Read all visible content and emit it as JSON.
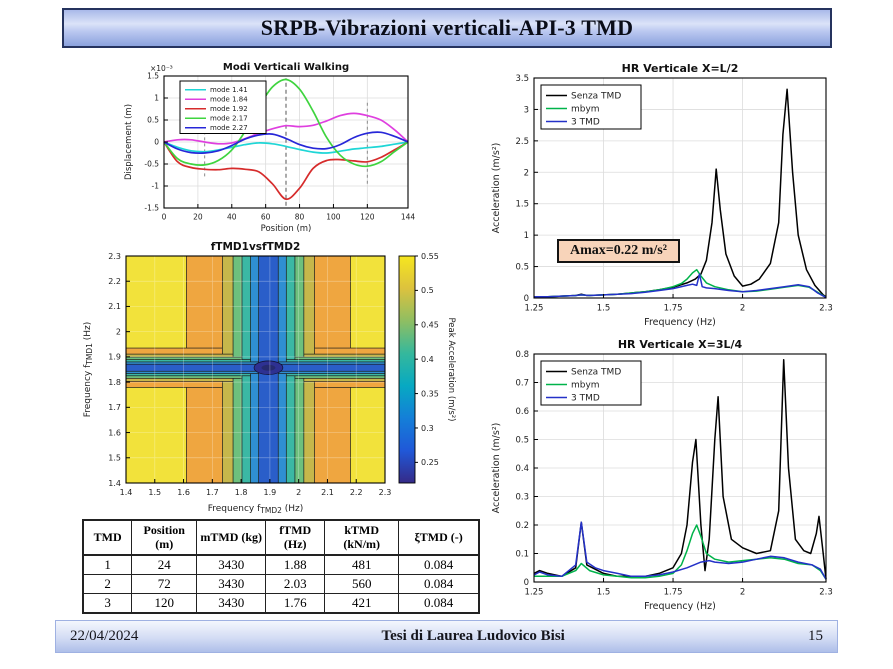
{
  "slide": {
    "title": "SRPB-Vibrazioni verticali-API-3 TMD"
  },
  "footer": {
    "date": "22/04/2024",
    "center": "Tesi di Laurea Ludovico Bisi",
    "page": "15"
  },
  "annotation": {
    "amax": "Amax=0.22 m/s²"
  },
  "table": {
    "headers": [
      "TMD",
      "Position\n(m)",
      "mTMD (kg)",
      "fTMD\n(Hz)",
      "kTMD\n(kN/m)",
      "ξTMD (-)"
    ],
    "rows": [
      [
        "1",
        "24",
        "3430",
        "1.88",
        "481",
        "0.084"
      ],
      [
        "2",
        "72",
        "3430",
        "2.03",
        "560",
        "0.084"
      ],
      [
        "3",
        "120",
        "3430",
        "1.76",
        "421",
        "0.084"
      ]
    ]
  },
  "chart_data": [
    {
      "id": "chart-modes",
      "type": "line",
      "title": "Modi Verticali Walking",
      "xlabel": "Position (m)",
      "ylabel": "Displacement (m)",
      "exp_label": "×10⁻³",
      "xlim": [
        0,
        144
      ],
      "ylim": [
        -1.5,
        1.5
      ],
      "xticks": [
        0,
        20,
        40,
        60,
        80,
        100,
        120,
        144
      ],
      "yticks": [
        -1.5,
        -1,
        -0.5,
        0,
        0.5,
        1,
        1.5
      ],
      "grid": true,
      "legend": true,
      "smooth": true,
      "vlines": [
        {
          "x": 24,
          "y1": -0.78,
          "y2": 0.32,
          "color": "#8a8a8a",
          "dash": "3,3"
        },
        {
          "x": 72,
          "y1": -1.45,
          "y2": 1.45,
          "color": "#555555",
          "dash": "4,3"
        },
        {
          "x": 120,
          "y1": -0.95,
          "y2": 0.95,
          "color": "#8a8a8a",
          "dash": "3,3"
        }
      ],
      "series": [
        {
          "name": "mode 1.41",
          "color": "#1ed6d6",
          "x": [
            0,
            8,
            16,
            24,
            32,
            40,
            48,
            56,
            64,
            72,
            80,
            88,
            96,
            104,
            112,
            120,
            128,
            136,
            144
          ],
          "y": [
            0,
            -0.12,
            -0.2,
            -0.22,
            -0.18,
            -0.12,
            -0.06,
            -0.02,
            -0.04,
            -0.1,
            -0.17,
            -0.23,
            -0.25,
            -0.21,
            -0.16,
            -0.13,
            -0.1,
            -0.05,
            0
          ]
        },
        {
          "name": "mode 1.84",
          "color": "#df3fdf",
          "x": [
            0,
            8,
            16,
            24,
            32,
            40,
            48,
            56,
            64,
            72,
            80,
            88,
            96,
            104,
            112,
            120,
            128,
            136,
            144
          ],
          "y": [
            0,
            0.05,
            0.05,
            0,
            -0.04,
            -0.02,
            0.08,
            0.2,
            0.3,
            0.37,
            0.35,
            0.38,
            0.48,
            0.6,
            0.65,
            0.6,
            0.5,
            0.28,
            0
          ]
        },
        {
          "name": "mode 1.92",
          "color": "#d62b2b",
          "x": [
            0,
            8,
            16,
            24,
            32,
            40,
            48,
            56,
            64,
            72,
            80,
            88,
            96,
            104,
            112,
            120,
            128,
            136,
            144
          ],
          "y": [
            0,
            -0.45,
            -0.58,
            -0.62,
            -0.63,
            -0.6,
            -0.62,
            -0.68,
            -0.95,
            -1.3,
            -1.05,
            -0.6,
            -0.42,
            -0.4,
            -0.43,
            -0.45,
            -0.35,
            -0.18,
            0
          ]
        },
        {
          "name": "mode 2.17",
          "color": "#3fd43f",
          "x": [
            0,
            8,
            16,
            24,
            32,
            40,
            48,
            56,
            64,
            72,
            80,
            88,
            96,
            104,
            112,
            120,
            128,
            136,
            144
          ],
          "y": [
            0,
            -0.38,
            -0.5,
            -0.52,
            -0.42,
            -0.18,
            0.25,
            0.8,
            1.25,
            1.42,
            1.2,
            0.7,
            0.1,
            -0.3,
            -0.5,
            -0.55,
            -0.45,
            -0.22,
            0
          ]
        },
        {
          "name": "mode 2.27",
          "color": "#2727d8",
          "x": [
            0,
            8,
            16,
            24,
            32,
            40,
            48,
            56,
            64,
            72,
            80,
            88,
            96,
            104,
            112,
            120,
            128,
            136,
            144
          ],
          "y": [
            0,
            -0.16,
            -0.24,
            -0.25,
            -0.2,
            -0.08,
            0.07,
            0.16,
            0.18,
            0.08,
            -0.06,
            -0.14,
            -0.15,
            -0.06,
            0.1,
            0.2,
            0.22,
            0.13,
            0
          ]
        }
      ]
    },
    {
      "id": "chart-contour",
      "type": "heatmap",
      "title": "fTMD1vsfTMD2",
      "xlabel_parts": [
        "Frequency f",
        "TMD2",
        " (Hz)"
      ],
      "ylabel_parts": [
        "Frequency f",
        "TMD1",
        " (Hz)"
      ],
      "xlim": [
        1.4,
        2.3
      ],
      "ylim": [
        1.4,
        2.3
      ],
      "xticks": [
        1.4,
        1.5,
        1.6,
        1.7,
        1.8,
        1.9,
        2,
        2.1,
        2.2,
        2.3
      ],
      "yticks": [
        1.4,
        1.5,
        1.6,
        1.7,
        1.8,
        1.9,
        2,
        2.1,
        2.2,
        2.3
      ],
      "bg_color": "#f2e23b",
      "center": {
        "x": 1.895,
        "y": 1.857
      },
      "bands": [
        {
          "color": "#efa640",
          "hx": 0.285,
          "hy": 0.078
        },
        {
          "color": "#c6b74b",
          "hx": 0.16,
          "hy": 0.054
        },
        {
          "color": "#6dc07d",
          "hx": 0.123,
          "hy": 0.042
        },
        {
          "color": "#3bb8a4",
          "hx": 0.092,
          "hy": 0.032
        },
        {
          "color": "#2f8fd2",
          "hx": 0.062,
          "hy": 0.023
        },
        {
          "color": "#2a5ec9",
          "hx": 0.034,
          "hy": 0.014
        }
      ],
      "blob": {
        "rx": 0.05,
        "ry": 0.027,
        "color": "#2e3192",
        "inner_rx": 0.024,
        "inner_ry": 0.012,
        "inner_color": "#262a6e"
      },
      "colorbar": {
        "min": 0.22,
        "max": 0.55,
        "ticks": [
          0.25,
          0.3,
          0.35,
          0.4,
          0.45,
          0.5,
          0.55
        ],
        "label": "Peak Acceleration (m/s²)",
        "stops": [
          "#352a87",
          "#2058d8",
          "#147fd8",
          "#07a9c2",
          "#35b89c",
          "#8fbe62",
          "#dcc23e",
          "#f6e61f"
        ]
      }
    },
    {
      "id": "chart-hr1",
      "type": "line",
      "title": "HR Verticale X=L/2",
      "xlabel": "Frequency (Hz)",
      "ylabel": "Acceleration (m/s²)",
      "xlim": [
        1.25,
        2.3
      ],
      "ylim": [
        0,
        3.5
      ],
      "xticks": [
        1.25,
        1.5,
        1.75,
        2,
        2.3
      ],
      "yticks": [
        0,
        0.5,
        1,
        1.5,
        2,
        2.5,
        3,
        3.5
      ],
      "grid": true,
      "legend": true,
      "smooth": false,
      "series": [
        {
          "name": "Senza TMD",
          "color": "#000000",
          "x": [
            1.25,
            1.3,
            1.35,
            1.4,
            1.42,
            1.44,
            1.5,
            1.55,
            1.6,
            1.65,
            1.7,
            1.75,
            1.8,
            1.83,
            1.85,
            1.87,
            1.89,
            1.905,
            1.92,
            1.94,
            1.97,
            2.0,
            2.03,
            2.06,
            2.1,
            2.13,
            2.145,
            2.16,
            2.18,
            2.2,
            2.23,
            2.26,
            2.29,
            2.3
          ],
          "y": [
            0.02,
            0.02,
            0.03,
            0.04,
            0.06,
            0.04,
            0.05,
            0.06,
            0.08,
            0.1,
            0.13,
            0.17,
            0.24,
            0.3,
            0.38,
            0.6,
            1.2,
            2.05,
            1.4,
            0.7,
            0.35,
            0.19,
            0.22,
            0.3,
            0.55,
            1.2,
            2.6,
            3.32,
            2.0,
            1.0,
            0.45,
            0.2,
            0.05,
            0.02
          ]
        },
        {
          "name": "mbym",
          "color": "#00b34a",
          "x": [
            1.25,
            1.3,
            1.35,
            1.4,
            1.42,
            1.45,
            1.5,
            1.55,
            1.6,
            1.65,
            1.7,
            1.75,
            1.78,
            1.8,
            1.82,
            1.835,
            1.85,
            1.87,
            1.9,
            1.95,
            2.0,
            2.05,
            2.1,
            2.15,
            2.2,
            2.24,
            2.27,
            2.3
          ],
          "y": [
            0.02,
            0.02,
            0.03,
            0.04,
            0.05,
            0.04,
            0.05,
            0.06,
            0.08,
            0.1,
            0.13,
            0.18,
            0.23,
            0.3,
            0.4,
            0.45,
            0.35,
            0.24,
            0.18,
            0.13,
            0.1,
            0.11,
            0.14,
            0.17,
            0.2,
            0.17,
            0.09,
            0.01
          ]
        },
        {
          "name": "3 TMD",
          "color": "#2431c8",
          "x": [
            1.25,
            1.3,
            1.35,
            1.4,
            1.42,
            1.45,
            1.5,
            1.55,
            1.6,
            1.65,
            1.7,
            1.75,
            1.8,
            1.82,
            1.835,
            1.845,
            1.855,
            1.87,
            1.9,
            1.95,
            2.0,
            2.05,
            2.1,
            2.15,
            2.2,
            2.24,
            2.27,
            2.3
          ],
          "y": [
            0.02,
            0.02,
            0.03,
            0.04,
            0.05,
            0.04,
            0.05,
            0.06,
            0.07,
            0.09,
            0.12,
            0.15,
            0.2,
            0.22,
            0.2,
            0.38,
            0.18,
            0.16,
            0.15,
            0.12,
            0.1,
            0.12,
            0.15,
            0.18,
            0.21,
            0.18,
            0.08,
            0.01
          ]
        }
      ]
    },
    {
      "id": "chart-hr2",
      "type": "line",
      "title": "HR Verticale X=3L/4",
      "xlabel": "Frequency (Hz)",
      "ylabel": "Acceleration (m/s²)",
      "xlim": [
        1.25,
        2.3
      ],
      "ylim": [
        0,
        0.8
      ],
      "xticks": [
        1.25,
        1.5,
        1.75,
        2,
        2.3
      ],
      "yticks": [
        0,
        0.1,
        0.2,
        0.3,
        0.4,
        0.5,
        0.6,
        0.7,
        0.8
      ],
      "grid": true,
      "legend": true,
      "smooth": false,
      "series": [
        {
          "name": "Senza TMD",
          "color": "#000000",
          "x": [
            1.25,
            1.27,
            1.3,
            1.35,
            1.4,
            1.42,
            1.44,
            1.5,
            1.55,
            1.6,
            1.65,
            1.7,
            1.75,
            1.78,
            1.8,
            1.82,
            1.832,
            1.85,
            1.865,
            1.88,
            1.9,
            1.912,
            1.93,
            1.96,
            2.0,
            2.05,
            2.1,
            2.13,
            2.148,
            2.165,
            2.19,
            2.22,
            2.245,
            2.265,
            2.275,
            2.29,
            2.3
          ],
          "y": [
            0.03,
            0.04,
            0.03,
            0.02,
            0.05,
            0.21,
            0.06,
            0.03,
            0.02,
            0.02,
            0.02,
            0.03,
            0.05,
            0.1,
            0.2,
            0.42,
            0.5,
            0.2,
            0.04,
            0.15,
            0.5,
            0.65,
            0.3,
            0.15,
            0.12,
            0.1,
            0.11,
            0.25,
            0.78,
            0.4,
            0.15,
            0.11,
            0.1,
            0.17,
            0.23,
            0.1,
            0.01
          ]
        },
        {
          "name": "mbym",
          "color": "#00b34a",
          "x": [
            1.25,
            1.3,
            1.35,
            1.4,
            1.42,
            1.45,
            1.5,
            1.55,
            1.6,
            1.65,
            1.7,
            1.75,
            1.78,
            1.8,
            1.82,
            1.835,
            1.85,
            1.87,
            1.9,
            1.95,
            2.0,
            2.05,
            2.1,
            2.15,
            2.2,
            2.25,
            2.28,
            2.3
          ],
          "y": [
            0.02,
            0.02,
            0.02,
            0.04,
            0.065,
            0.04,
            0.025,
            0.02,
            0.015,
            0.015,
            0.02,
            0.03,
            0.06,
            0.11,
            0.17,
            0.2,
            0.16,
            0.1,
            0.08,
            0.07,
            0.075,
            0.08,
            0.085,
            0.08,
            0.065,
            0.06,
            0.04,
            0.01
          ]
        },
        {
          "name": "3 TMD",
          "color": "#2431c8",
          "x": [
            1.25,
            1.27,
            1.3,
            1.35,
            1.4,
            1.42,
            1.44,
            1.47,
            1.5,
            1.55,
            1.6,
            1.65,
            1.7,
            1.75,
            1.8,
            1.85,
            1.88,
            1.9,
            1.95,
            2.0,
            2.05,
            2.1,
            2.15,
            2.2,
            2.25,
            2.28,
            2.3
          ],
          "y": [
            0.025,
            0.035,
            0.025,
            0.02,
            0.06,
            0.21,
            0.07,
            0.05,
            0.04,
            0.03,
            0.02,
            0.02,
            0.025,
            0.035,
            0.05,
            0.07,
            0.075,
            0.07,
            0.065,
            0.07,
            0.08,
            0.09,
            0.085,
            0.07,
            0.06,
            0.045,
            0.01
          ]
        }
      ]
    }
  ]
}
